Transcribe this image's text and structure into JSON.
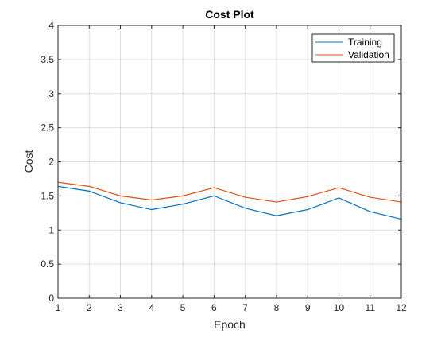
{
  "chart_data": {
    "type": "line",
    "title": "Cost Plot",
    "xlabel": "Epoch",
    "ylabel": "Cost",
    "x": [
      1,
      2,
      3,
      4,
      5,
      6,
      7,
      8,
      9,
      10,
      11,
      12
    ],
    "xlim": [
      1,
      12
    ],
    "ylim": [
      0,
      4
    ],
    "xticks": [
      1,
      2,
      3,
      4,
      5,
      6,
      7,
      8,
      9,
      10,
      11,
      12
    ],
    "yticks": [
      0,
      0.5,
      1,
      1.5,
      2,
      2.5,
      3,
      3.5,
      4
    ],
    "grid": true,
    "legend_position": "top-right",
    "series": [
      {
        "name": "Training",
        "color": "#0072BD",
        "values": [
          1.64,
          1.57,
          1.4,
          1.3,
          1.38,
          1.5,
          1.32,
          1.21,
          1.3,
          1.47,
          1.27,
          1.16
        ]
      },
      {
        "name": "Validation",
        "color": "#D95319",
        "values": [
          1.7,
          1.64,
          1.5,
          1.44,
          1.5,
          1.62,
          1.48,
          1.41,
          1.49,
          1.62,
          1.48,
          1.41
        ]
      }
    ]
  }
}
